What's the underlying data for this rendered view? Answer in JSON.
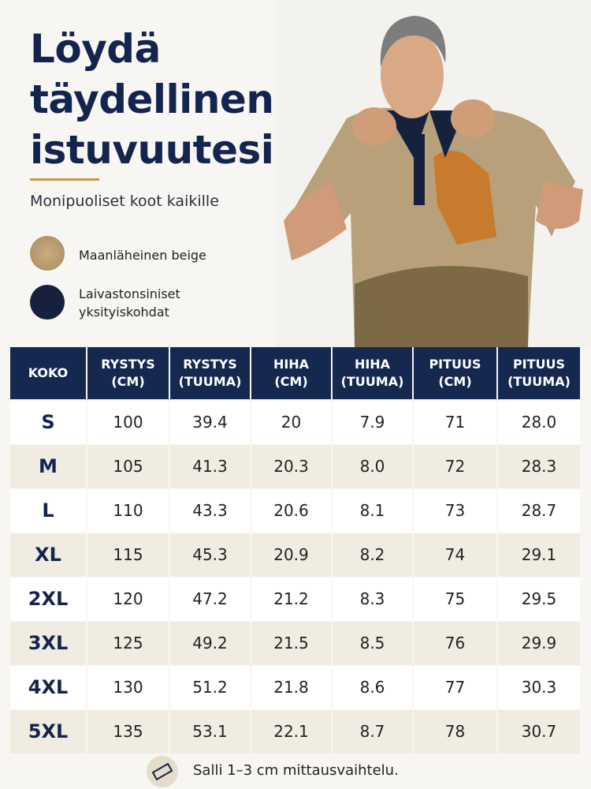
{
  "header": {
    "title_lines": [
      "Löydä",
      "täydellinen",
      "istuvuutesi"
    ],
    "subtitle": "Monipuoliset koot kaikille"
  },
  "swatches": [
    {
      "label_lines": [
        "Maanläheinen beige"
      ]
    },
    {
      "label_lines": [
        "Laivastonsiniset",
        "yksityiskohdat"
      ]
    }
  ],
  "table": {
    "columns": [
      [
        "KOKO"
      ],
      [
        "RYSTYS",
        "(CM)"
      ],
      [
        "RYSTYS",
        "(TUUMA)"
      ],
      [
        "HIHA",
        "(CM)"
      ],
      [
        "HIHA",
        "(TUUMA)"
      ],
      [
        "PITUUS",
        "(CM)"
      ],
      [
        "PITUUS",
        "(TUUMA)"
      ]
    ],
    "rows": [
      [
        "S",
        "100",
        "39.4",
        "20",
        "7.9",
        "71",
        "28.0"
      ],
      [
        "M",
        "105",
        "41.3",
        "20.3",
        "8.0",
        "72",
        "28.3"
      ],
      [
        "L",
        "110",
        "43.3",
        "20.6",
        "8.1",
        "73",
        "28.7"
      ],
      [
        "XL",
        "115",
        "45.3",
        "20.9",
        "8.2",
        "74",
        "29.1"
      ],
      [
        "2XL",
        "120",
        "47.2",
        "21.2",
        "8.3",
        "75",
        "29.5"
      ],
      [
        "3XL",
        "125",
        "49.2",
        "21.5",
        "8.5",
        "76",
        "29.9"
      ],
      [
        "4XL",
        "130",
        "51.2",
        "21.8",
        "8.6",
        "77",
        "30.3"
      ],
      [
        "5XL",
        "135",
        "53.1",
        "22.1",
        "8.7",
        "78",
        "30.7"
      ]
    ]
  },
  "note": "Salli 1–3 cm mittausvaihtelu."
}
